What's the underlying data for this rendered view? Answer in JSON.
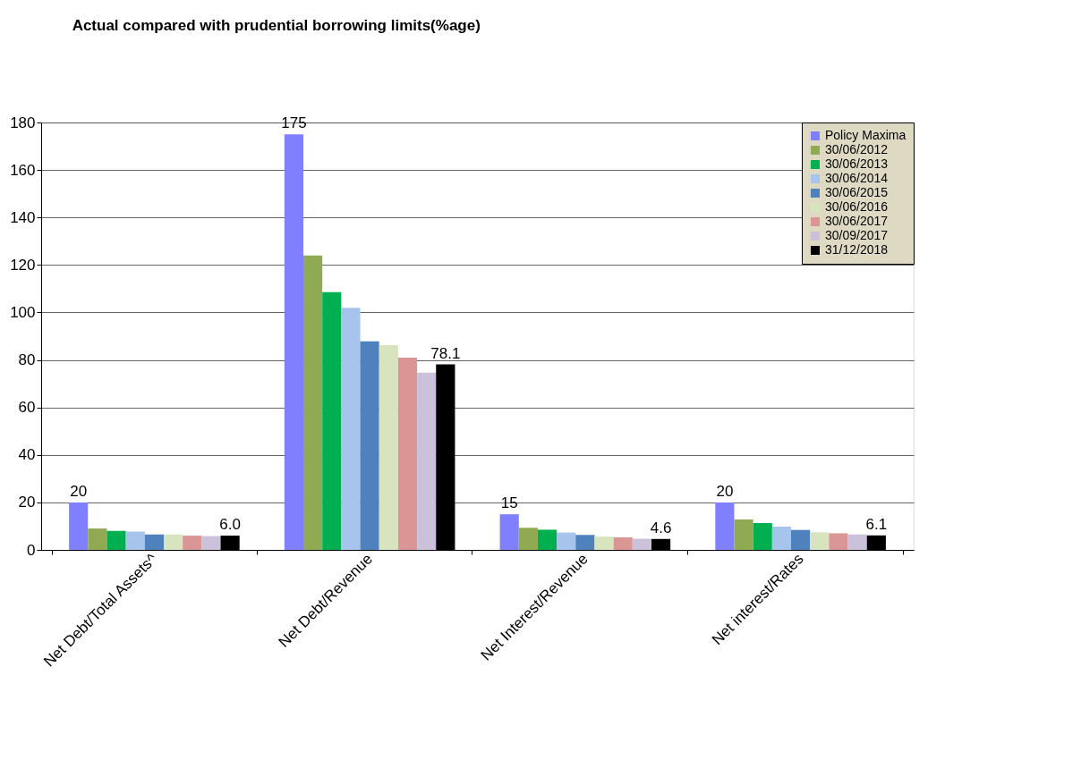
{
  "chart_data": {
    "type": "bar",
    "title": "Actual compared with prudential borrowing limits(%age)",
    "categories": [
      "Net Debt/Total Assets^",
      "Net Debt/Revenue",
      "Net Interest/Revenue",
      "Net interest/Rates"
    ],
    "series": [
      {
        "name": "Policy Maxima",
        "color": "#8080ff",
        "values": [
          20,
          175,
          15,
          20
        ],
        "value_labels": [
          "20",
          "175",
          "15",
          "20"
        ]
      },
      {
        "name": "30/06/2012",
        "color": "#8faa52",
        "values": [
          9.0,
          124,
          9.3,
          12.8
        ]
      },
      {
        "name": "30/06/2013",
        "color": "#00b050",
        "values": [
          8.0,
          108.5,
          8.5,
          11.3
        ]
      },
      {
        "name": "30/06/2014",
        "color": "#a6c4ec",
        "values": [
          7.7,
          102,
          7.3,
          9.8
        ]
      },
      {
        "name": "30/06/2015",
        "color": "#4f81bd",
        "values": [
          6.5,
          87.8,
          6.3,
          8.4
        ]
      },
      {
        "name": "30/06/2016",
        "color": "#d7e4bd",
        "values": [
          6.5,
          86.2,
          5.6,
          7.4
        ]
      },
      {
        "name": "30/06/2017",
        "color": "#d99694",
        "values": [
          6.0,
          81,
          5.3,
          7.0
        ]
      },
      {
        "name": "30/09/2017",
        "color": "#ccc1da",
        "values": [
          5.8,
          74.7,
          4.7,
          6.5
        ]
      },
      {
        "name": "31/12/2018",
        "color": "#000000",
        "values": [
          6.0,
          78.1,
          4.6,
          6.1
        ],
        "value_labels": [
          "6.0",
          "78.1",
          "4.6",
          "6.1"
        ]
      }
    ],
    "ylim": [
      0,
      180
    ],
    "yticks": [
      0,
      20,
      40,
      60,
      80,
      100,
      120,
      140,
      160,
      180
    ],
    "grid": "y",
    "legend": "top right"
  }
}
